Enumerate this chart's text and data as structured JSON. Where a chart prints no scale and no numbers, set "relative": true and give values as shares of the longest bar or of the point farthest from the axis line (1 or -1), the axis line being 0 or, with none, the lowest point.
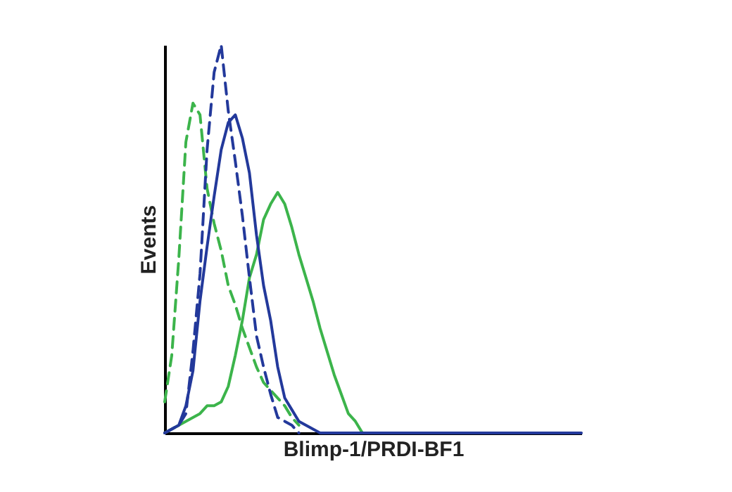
{
  "chart_data": {
    "type": "line",
    "relative": true,
    "xlabel": "Blimp-1/PRDI-BF1",
    "ylabel": "Events",
    "grid": false,
    "marker": "none",
    "categories": [
      null,
      null,
      null,
      null,
      null,
      null,
      null,
      null,
      null,
      null,
      null,
      null,
      null,
      null,
      null,
      null,
      null,
      null,
      null,
      null,
      null,
      null,
      null,
      null,
      null,
      null,
      null,
      null,
      null,
      null,
      null,
      null,
      null,
      null,
      null,
      null,
      null,
      null,
      null,
      null,
      null,
      null,
      null,
      null,
      null,
      null,
      null,
      null,
      null,
      null,
      null,
      null,
      null,
      null,
      null,
      null,
      null,
      null,
      null,
      null
    ],
    "series": [
      {
        "color": "#3cb44b",
        "line_style": "dashed",
        "values": [
          0.08,
          0.2,
          0.45,
          0.75,
          0.85,
          0.82,
          0.63,
          0.54,
          0.47,
          0.38,
          0.33,
          0.27,
          0.22,
          0.17,
          0.13,
          0.11,
          0.09,
          0.07,
          0.04,
          0.02,
          null,
          null,
          null,
          null,
          null,
          null,
          null,
          null,
          null,
          null,
          null,
          null,
          null,
          null,
          null,
          null,
          null,
          null,
          null,
          null,
          null,
          null,
          null,
          null,
          null,
          null,
          null,
          null,
          null,
          null,
          null,
          null,
          null,
          null,
          null,
          null,
          null,
          null,
          null,
          null
        ]
      },
      {
        "color": "#3cb44b",
        "line_style": "solid",
        "values": [
          0,
          0.01,
          0.02,
          0.03,
          0.04,
          0.05,
          0.07,
          0.07,
          0.08,
          0.12,
          0.2,
          0.29,
          0.4,
          0.46,
          0.55,
          0.59,
          0.62,
          0.59,
          0.53,
          0.46,
          0.4,
          0.34,
          0.27,
          0.21,
          0.15,
          0.1,
          0.05,
          0.03,
          0,
          null,
          null,
          null,
          null,
          null,
          null,
          null,
          null,
          null,
          null,
          null,
          null,
          null,
          null,
          null,
          null,
          null,
          null,
          null,
          null,
          null,
          null,
          null,
          null,
          null,
          null,
          null,
          null,
          null,
          null,
          null
        ]
      },
      {
        "color": "#23399b",
        "line_style": "dashed",
        "values": [
          0,
          0.01,
          0.02,
          0.05,
          0.21,
          0.41,
          0.73,
          0.93,
          1,
          0.83,
          0.7,
          0.56,
          0.4,
          0.25,
          0.17,
          0.1,
          0.04,
          0.03,
          0.02,
          0,
          null,
          null,
          null,
          null,
          null,
          null,
          null,
          null,
          null,
          null,
          null,
          null,
          null,
          null,
          null,
          null,
          null,
          null,
          null,
          null,
          null,
          null,
          null,
          null,
          null,
          null,
          null,
          null,
          null,
          null,
          null,
          null,
          null,
          null,
          null,
          null,
          null,
          null,
          null,
          null
        ]
      },
      {
        "color": "#23399b",
        "line_style": "solid",
        "values": [
          0,
          0.01,
          0.02,
          0.07,
          0.16,
          0.34,
          0.48,
          0.61,
          0.73,
          0.8,
          0.82,
          0.76,
          0.67,
          0.51,
          0.38,
          0.29,
          0.17,
          0.09,
          0.06,
          0.03,
          0.02,
          0.01,
          0,
          0,
          0,
          0,
          0,
          0,
          0,
          0,
          0,
          0,
          0,
          0,
          0,
          0,
          0,
          0,
          0,
          0,
          0,
          0,
          0,
          0,
          0,
          0,
          0,
          0,
          0,
          0,
          0,
          0,
          0,
          0,
          0,
          0,
          0,
          0,
          0,
          0
        ]
      }
    ]
  }
}
